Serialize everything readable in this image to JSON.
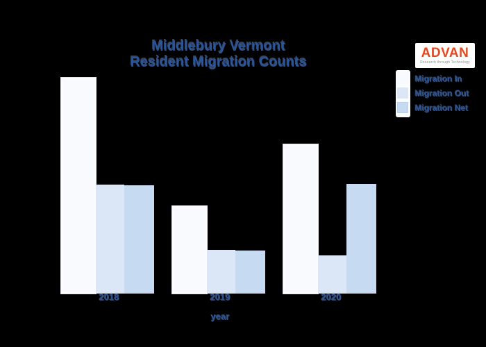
{
  "page": {
    "background": "#000000",
    "accent_text_color": "#2456a4"
  },
  "header": {
    "title_line1": "Middlebury Vermont",
    "title_line2": "Resident Migration Counts"
  },
  "logo": {
    "brand": "ADVAN",
    "tagline": "Research through Technology",
    "brand_color": "#e8471a"
  },
  "axis": {
    "x_title": "year"
  },
  "chart_data": {
    "type": "bar",
    "title": "Middlebury Vermont Resident Migration Counts",
    "categories": [
      "2018",
      "2019",
      "2020"
    ],
    "series": [
      {
        "name": "Migration In",
        "values": [
          311,
          126,
          215
        ],
        "color": "#f8fafe"
      },
      {
        "name": "Migration Out",
        "values": [
          157,
          63,
          55
        ],
        "color": "#dbe7f7"
      },
      {
        "name": "Migration Net",
        "values": [
          156,
          62,
          158
        ],
        "color": "#c6daf1"
      }
    ],
    "xlabel": "year",
    "ylabel": "",
    "ylim": [
      0,
      320
    ],
    "grid": false,
    "axes_visible": false,
    "legend_position": "top-right"
  }
}
